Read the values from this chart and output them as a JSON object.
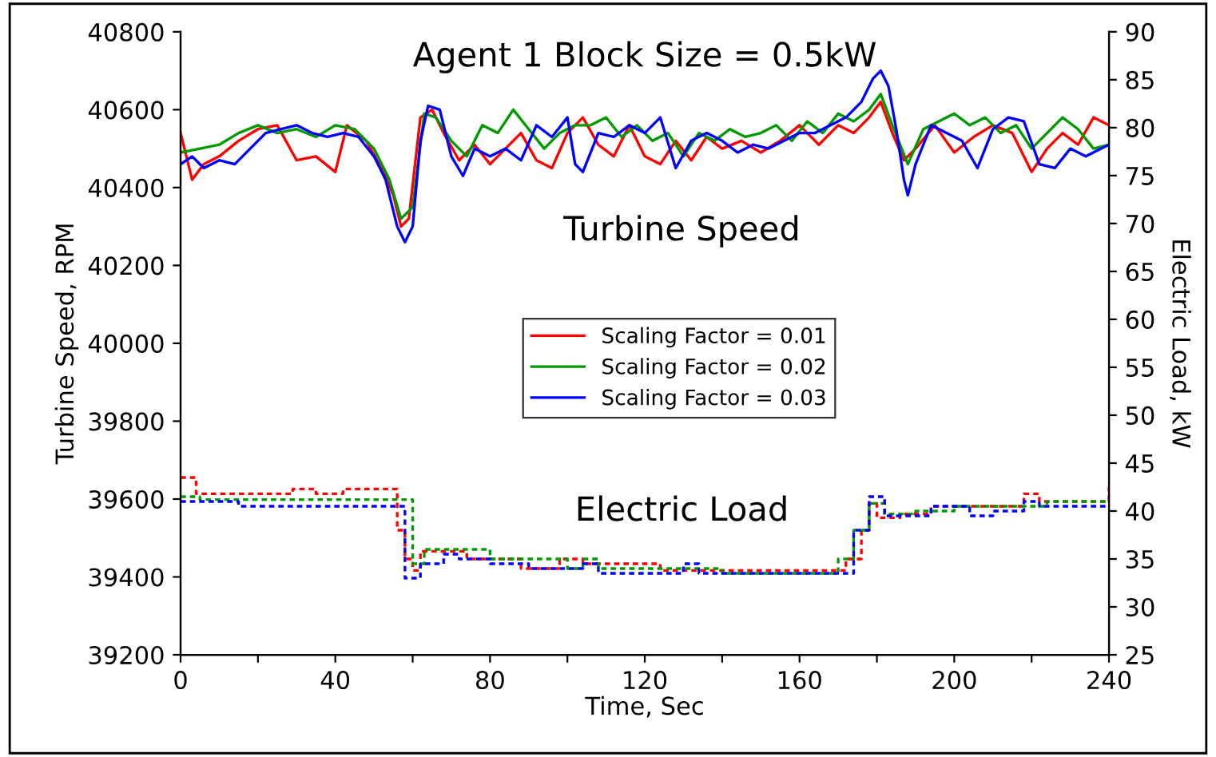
{
  "chart_data": {
    "type": "line",
    "title": "Agent 1 Block Size = 0.5kW",
    "xlabel": "Time, Sec",
    "ylabel": "Turbine Speed, RPM",
    "y2label": "Electric Load, kW",
    "xlim": [
      0,
      240
    ],
    "xticks": [
      0,
      {
        "value": 20,
        "label": null
      },
      40,
      {
        "value": 60,
        "label": null
      },
      80,
      {
        "value": 100,
        "label": null
      },
      120,
      {
        "value": 140,
        "label": null
      },
      160,
      {
        "value": 180,
        "label": null
      },
      200,
      {
        "value": 220,
        "label": null
      },
      240
    ],
    "ylim": [
      39200,
      40800
    ],
    "yticks": [
      39200,
      39400,
      39600,
      39800,
      40000,
      40200,
      40400,
      40600,
      40800
    ],
    "y2lim": [
      25,
      90
    ],
    "y2ticks": [
      25,
      30,
      35,
      40,
      45,
      50,
      55,
      60,
      65,
      70,
      75,
      80,
      85,
      90
    ],
    "grid": false,
    "legend": "center",
    "marker": "none",
    "annotations": [
      "Turbine Speed",
      "Electric Load"
    ],
    "series": [
      {
        "name": "Scaling Factor = 0.01",
        "color": "#ff0000",
        "line_style": "solid",
        "x": [
          0,
          3,
          6,
          10,
          15,
          20,
          25,
          30,
          35,
          40,
          43,
          48,
          52,
          55,
          57,
          59,
          62,
          65,
          68,
          72,
          76,
          80,
          84,
          88,
          92,
          96,
          100,
          104,
          108,
          112,
          116,
          120,
          124,
          128,
          132,
          136,
          140,
          145,
          150,
          155,
          160,
          165,
          170,
          174,
          178,
          181,
          184,
          187,
          190,
          195,
          200,
          205,
          210,
          215,
          220,
          224,
          228,
          232,
          236,
          240
        ],
        "values": [
          40540,
          40420,
          40460,
          40480,
          40520,
          40550,
          40560,
          40470,
          40480,
          40440,
          40560,
          40520,
          40450,
          40380,
          40300,
          40320,
          40580,
          40600,
          40540,
          40470,
          40510,
          40460,
          40500,
          40540,
          40470,
          40450,
          40540,
          40580,
          40510,
          40480,
          40560,
          40480,
          40460,
          40520,
          40470,
          40530,
          40500,
          40520,
          40490,
          40520,
          40560,
          40510,
          40560,
          40540,
          40580,
          40620,
          40540,
          40470,
          40500,
          40560,
          40490,
          40530,
          40560,
          40540,
          40440,
          40500,
          40540,
          40510,
          40580,
          40560
        ]
      },
      {
        "name": "Scaling Factor = 0.02",
        "color": "#009900",
        "line_style": "solid",
        "x": [
          0,
          5,
          10,
          15,
          20,
          25,
          30,
          35,
          40,
          45,
          50,
          54,
          57,
          60,
          63,
          66,
          70,
          74,
          78,
          82,
          86,
          90,
          94,
          98,
          102,
          106,
          110,
          114,
          118,
          122,
          126,
          130,
          134,
          138,
          142,
          146,
          150,
          154,
          158,
          162,
          166,
          170,
          174,
          178,
          181,
          184,
          188,
          192,
          196,
          200,
          204,
          208,
          212,
          216,
          220,
          224,
          228,
          232,
          236,
          240
        ],
        "values": [
          40490,
          40500,
          40510,
          40540,
          40560,
          40540,
          40550,
          40530,
          40560,
          40550,
          40500,
          40420,
          40320,
          40350,
          40590,
          40580,
          40520,
          40480,
          40560,
          40540,
          40600,
          40550,
          40500,
          40540,
          40560,
          40560,
          40580,
          40530,
          40560,
          40520,
          40540,
          40480,
          40540,
          40520,
          40550,
          40530,
          40540,
          40560,
          40520,
          40570,
          40540,
          40590,
          40570,
          40600,
          40640,
          40560,
          40460,
          40550,
          40570,
          40590,
          40560,
          40580,
          40540,
          40560,
          40500,
          40540,
          40580,
          40550,
          40500,
          40510
        ]
      },
      {
        "name": "Scaling Factor = 0.03",
        "color": "#0000ff",
        "line_style": "solid",
        "x": [
          0,
          3,
          6,
          10,
          14,
          18,
          22,
          26,
          30,
          34,
          38,
          42,
          46,
          50,
          53,
          56,
          58,
          60,
          62,
          64,
          67,
          70,
          73,
          76,
          80,
          84,
          88,
          92,
          96,
          100,
          102,
          104,
          108,
          112,
          116,
          120,
          124,
          128,
          132,
          136,
          140,
          144,
          148,
          152,
          156,
          160,
          164,
          168,
          172,
          176,
          179,
          181,
          183,
          185,
          187,
          188,
          190,
          194,
          198,
          202,
          206,
          210,
          214,
          218,
          222,
          226,
          230,
          234,
          238,
          240
        ],
        "values": [
          40460,
          40480,
          40450,
          40470,
          40460,
          40500,
          40540,
          40550,
          40560,
          40540,
          40530,
          40540,
          40530,
          40480,
          40420,
          40300,
          40260,
          40300,
          40520,
          40610,
          40600,
          40480,
          40430,
          40500,
          40480,
          40500,
          40470,
          40560,
          40530,
          40580,
          40460,
          40440,
          40540,
          40530,
          40560,
          40540,
          40580,
          40450,
          40520,
          40540,
          40520,
          40490,
          40510,
          40500,
          40520,
          40540,
          40540,
          40560,
          40580,
          40620,
          40680,
          40700,
          40660,
          40550,
          40420,
          40380,
          40460,
          40560,
          40540,
          40520,
          40450,
          40550,
          40580,
          40570,
          40460,
          40450,
          40500,
          40480,
          40500,
          40510
        ]
      },
      {
        "type": "step",
        "axis": "y2",
        "color": "#ff0000",
        "line_style": "dotted",
        "x": [
          0,
          4,
          29,
          35,
          42,
          54,
          56,
          58,
          60,
          62,
          74,
          84,
          88,
          98,
          104,
          116,
          124,
          136,
          160,
          168,
          172,
          176,
          178,
          180,
          186,
          194,
          212,
          218,
          222,
          238,
          240
        ],
        "values": [
          43.5,
          41.8,
          42.3,
          41.8,
          42.3,
          42.3,
          38,
          35,
          33.8,
          35.8,
          35,
          35,
          34,
          35,
          34.5,
          34.5,
          33.8,
          33.8,
          33.8,
          33.8,
          35,
          38,
          40.8,
          39.3,
          39.7,
          40.5,
          40.5,
          41.8,
          41,
          41,
          42.5
        ]
      },
      {
        "type": "step",
        "axis": "y2",
        "color": "#009900",
        "line_style": "dotted",
        "x": [
          0,
          5,
          55,
          60,
          63,
          70,
          80,
          90,
          100,
          104,
          108,
          116,
          130,
          140,
          158,
          166,
          170,
          174,
          178,
          182,
          190,
          200,
          220,
          224,
          240
        ],
        "values": [
          41.5,
          41.2,
          41.2,
          34.5,
          36,
          36,
          35,
          35,
          34,
          35,
          34,
          34,
          34,
          33.5,
          33.5,
          33.5,
          35,
          38,
          40.8,
          39.7,
          40,
          40.5,
          40.5,
          41,
          41
        ]
      },
      {
        "type": "step",
        "axis": "y2",
        "color": "#0000ff",
        "line_style": "dotted",
        "x": [
          0,
          10,
          15,
          55,
          58,
          60,
          62,
          66,
          68,
          72,
          80,
          90,
          100,
          104,
          108,
          124,
          130,
          134,
          160,
          168,
          174,
          178,
          180,
          182,
          190,
          194,
          200,
          204,
          210,
          218,
          222,
          240
        ],
        "values": [
          41,
          41,
          40.5,
          40.5,
          33,
          33,
          34.5,
          34.5,
          35.5,
          35,
          34.5,
          34,
          34,
          34.5,
          33.5,
          33.5,
          34.5,
          33.5,
          33.5,
          33.5,
          38,
          41.5,
          41.5,
          39.5,
          39.5,
          40.5,
          40.5,
          39.5,
          40,
          41,
          40.5,
          40.5
        ]
      }
    ]
  }
}
